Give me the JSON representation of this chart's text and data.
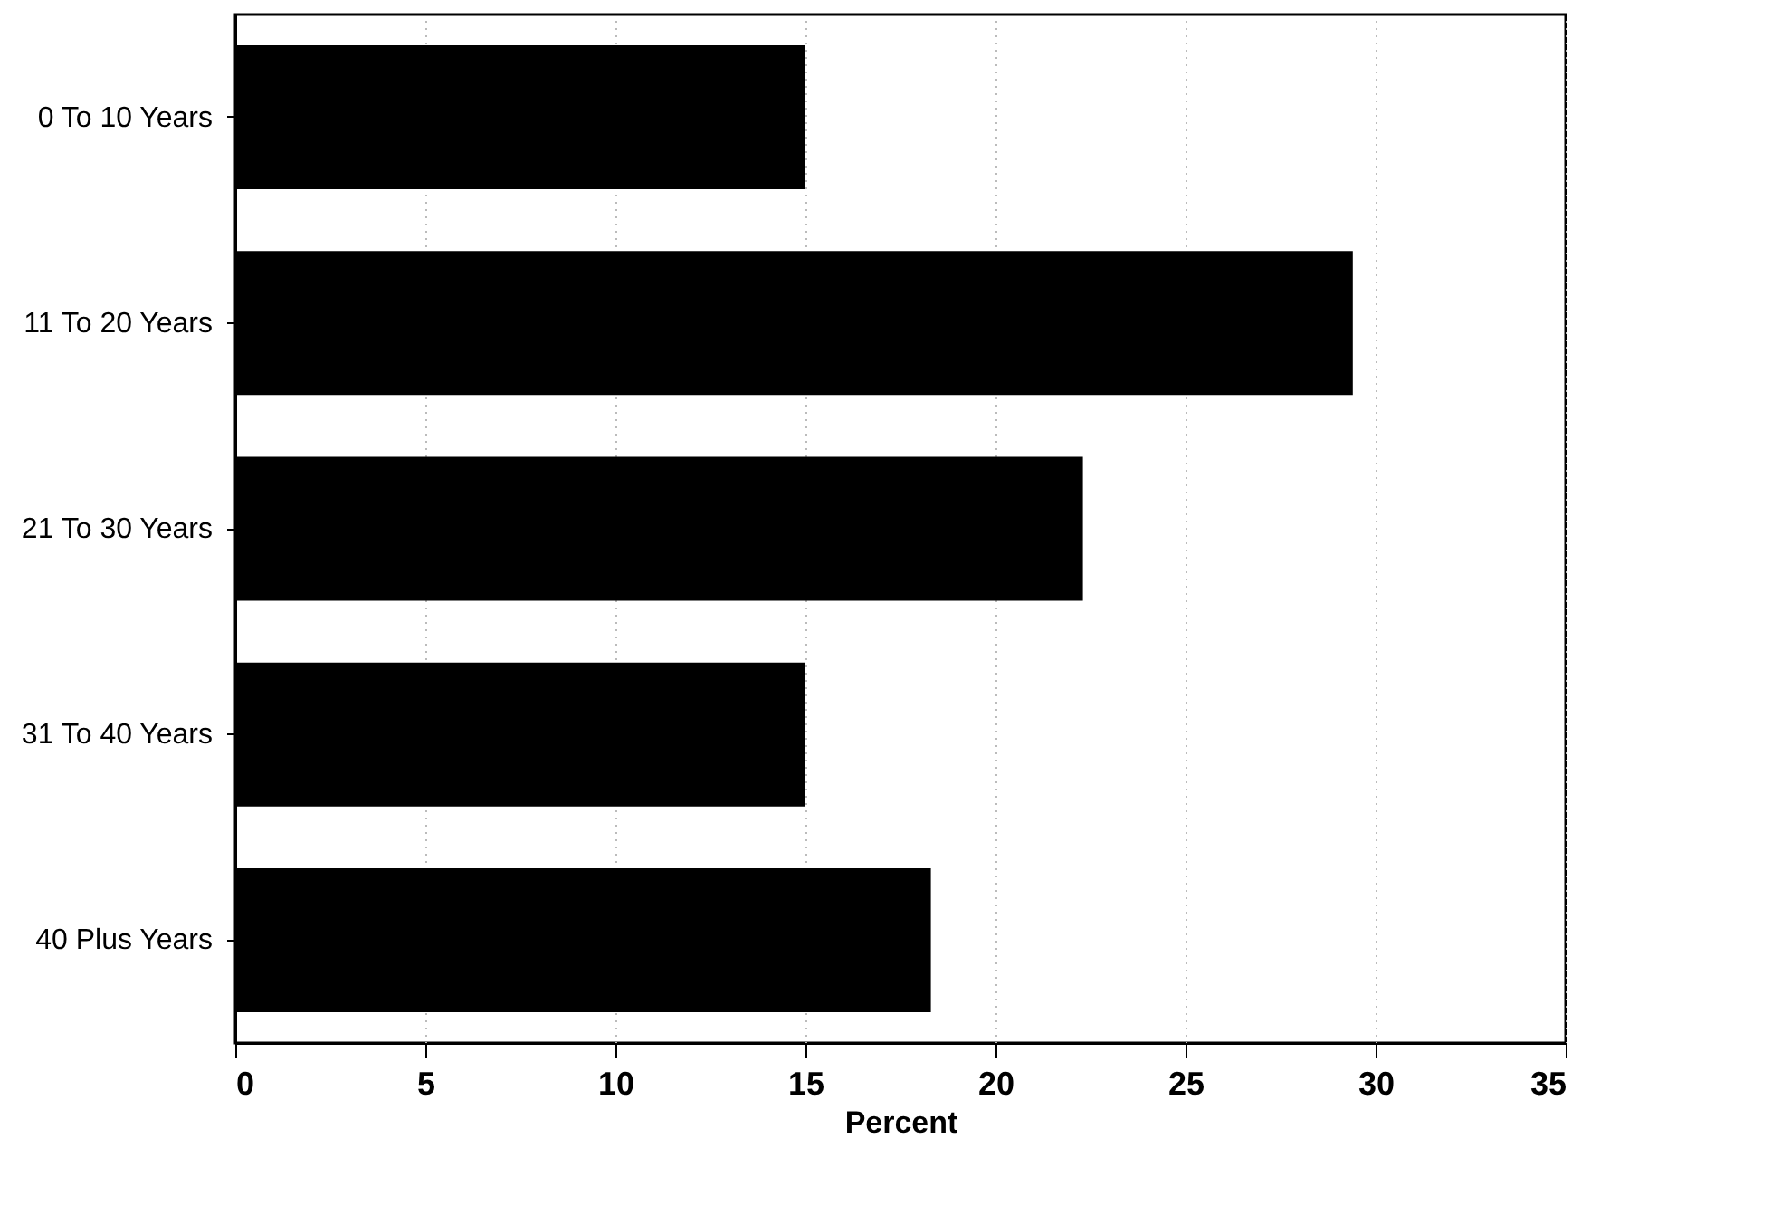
{
  "chart_data": {
    "type": "bar",
    "orientation": "horizontal",
    "xlabel": "Percent",
    "categories": [
      "0 To 10 Years",
      "11 To 20 Years",
      "21 To 30 Years",
      "31 To 40 Years",
      "40 Plus Years"
    ],
    "values": [
      15.0,
      29.4,
      22.3,
      15.0,
      18.3
    ],
    "color": "#000000",
    "xlim": [
      0,
      35
    ],
    "xticks": [
      0,
      5,
      10,
      15,
      20,
      25,
      30,
      35
    ],
    "grid": "x"
  }
}
